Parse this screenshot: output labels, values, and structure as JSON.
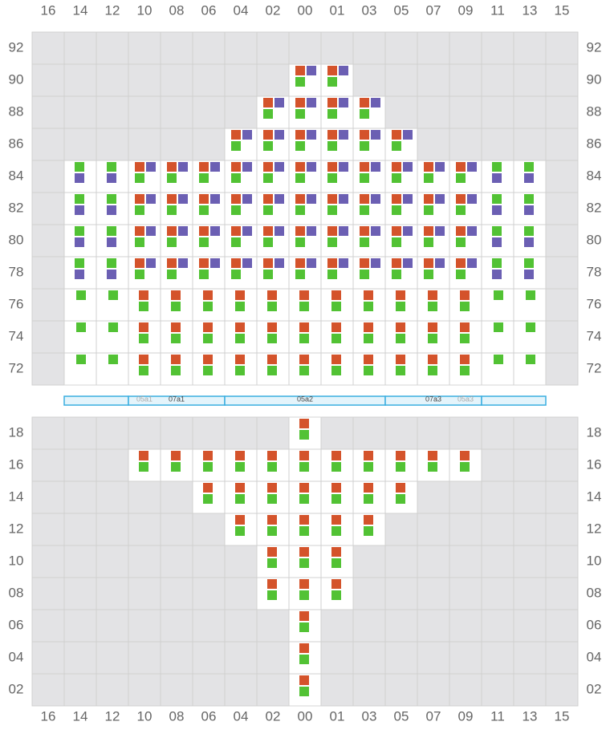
{
  "columns": [
    "16",
    "14",
    "12",
    "10",
    "08",
    "06",
    "04",
    "02",
    "00",
    "01",
    "03",
    "05",
    "07",
    "09",
    "11",
    "13",
    "15"
  ],
  "colors": {
    "orange": "#d4532b",
    "purple": "#6b5fb3",
    "green": "#52c234"
  },
  "upper": {
    "rows": [
      {
        "label": "92",
        "cells": []
      },
      {
        "label": "90",
        "cells": [
          {
            "kind": "opg",
            "cols": [
              "00",
              "01"
            ]
          }
        ]
      },
      {
        "label": "88",
        "cells": [
          {
            "kind": "opg",
            "cols": [
              "02",
              "00",
              "01",
              "03"
            ]
          }
        ]
      },
      {
        "label": "86",
        "cells": [
          {
            "kind": "opg",
            "cols": [
              "04",
              "02",
              "00",
              "01",
              "03",
              "05"
            ]
          }
        ]
      },
      {
        "label": "84",
        "cells": [
          {
            "kind": "gp",
            "cols": [
              "14",
              "12",
              "11",
              "13"
            ]
          },
          {
            "kind": "opg",
            "cols": [
              "10",
              "08",
              "06",
              "04",
              "02",
              "00",
              "01",
              "03",
              "05",
              "07",
              "09"
            ]
          }
        ]
      },
      {
        "label": "82",
        "cells": [
          {
            "kind": "gp",
            "cols": [
              "14",
              "12",
              "11",
              "13"
            ]
          },
          {
            "kind": "opg",
            "cols": [
              "10",
              "08",
              "06",
              "04",
              "02",
              "00",
              "01",
              "03",
              "05",
              "07",
              "09"
            ]
          }
        ]
      },
      {
        "label": "80",
        "cells": [
          {
            "kind": "gp",
            "cols": [
              "14",
              "12",
              "11",
              "13"
            ]
          },
          {
            "kind": "opg",
            "cols": [
              "10",
              "08",
              "06",
              "04",
              "02",
              "00",
              "01",
              "03",
              "05",
              "07",
              "09"
            ]
          }
        ]
      },
      {
        "label": "78",
        "cells": [
          {
            "kind": "gp",
            "cols": [
              "14",
              "12",
              "11",
              "13"
            ]
          },
          {
            "kind": "opg",
            "cols": [
              "10",
              "08",
              "06",
              "04",
              "02",
              "00",
              "01",
              "03",
              "05",
              "07",
              "09"
            ]
          }
        ]
      },
      {
        "label": "76",
        "cells": [
          {
            "kind": "g",
            "cols": [
              "14",
              "12",
              "11",
              "13"
            ]
          },
          {
            "kind": "og",
            "cols": [
              "10",
              "08",
              "06",
              "04",
              "02",
              "00",
              "01",
              "03",
              "05",
              "07",
              "09"
            ]
          }
        ]
      },
      {
        "label": "74",
        "cells": [
          {
            "kind": "g",
            "cols": [
              "14",
              "12",
              "11",
              "13"
            ]
          },
          {
            "kind": "og",
            "cols": [
              "10",
              "08",
              "06",
              "04",
              "02",
              "00",
              "01",
              "03",
              "05",
              "07",
              "09"
            ]
          }
        ]
      },
      {
        "label": "72",
        "cells": [
          {
            "kind": "g",
            "cols": [
              "14",
              "12",
              "11",
              "13"
            ]
          },
          {
            "kind": "og",
            "cols": [
              "10",
              "08",
              "06",
              "04",
              "02",
              "00",
              "01",
              "03",
              "05",
              "07",
              "09"
            ]
          }
        ]
      }
    ]
  },
  "bar": {
    "segments": [
      {
        "labels": []
      },
      {
        "labels": [
          {
            "text": "05a1",
            "dim": true
          },
          {
            "text": "07a1",
            "dim": false
          }
        ]
      },
      {
        "labels": [
          {
            "text": "05a2",
            "dim": false
          }
        ]
      },
      {
        "labels": [
          {
            "text": "07a3",
            "dim": false
          },
          {
            "text": "05a3",
            "dim": true
          }
        ]
      },
      {
        "labels": []
      }
    ]
  },
  "lower": {
    "rows": [
      {
        "label": "18",
        "cells": [
          {
            "kind": "og",
            "cols": [
              "00"
            ]
          }
        ]
      },
      {
        "label": "16",
        "cells": [
          {
            "kind": "og",
            "cols": [
              "10",
              "08",
              "06",
              "04",
              "02",
              "00",
              "01",
              "03",
              "05",
              "07",
              "09"
            ]
          }
        ]
      },
      {
        "label": "14",
        "cells": [
          {
            "kind": "og",
            "cols": [
              "06",
              "04",
              "02",
              "00",
              "01",
              "03",
              "05"
            ]
          }
        ]
      },
      {
        "label": "12",
        "cells": [
          {
            "kind": "og",
            "cols": [
              "04",
              "02",
              "00",
              "01",
              "03"
            ]
          }
        ]
      },
      {
        "label": "10",
        "cells": [
          {
            "kind": "og",
            "cols": [
              "02",
              "00",
              "01"
            ]
          }
        ]
      },
      {
        "label": "08",
        "cells": [
          {
            "kind": "og",
            "cols": [
              "02",
              "00",
              "01"
            ]
          }
        ]
      },
      {
        "label": "06",
        "cells": [
          {
            "kind": "og",
            "cols": [
              "00"
            ]
          }
        ]
      },
      {
        "label": "04",
        "cells": [
          {
            "kind": "og",
            "cols": [
              "00"
            ]
          }
        ]
      },
      {
        "label": "02",
        "cells": [
          {
            "kind": "og",
            "cols": [
              "00"
            ]
          }
        ]
      }
    ]
  }
}
